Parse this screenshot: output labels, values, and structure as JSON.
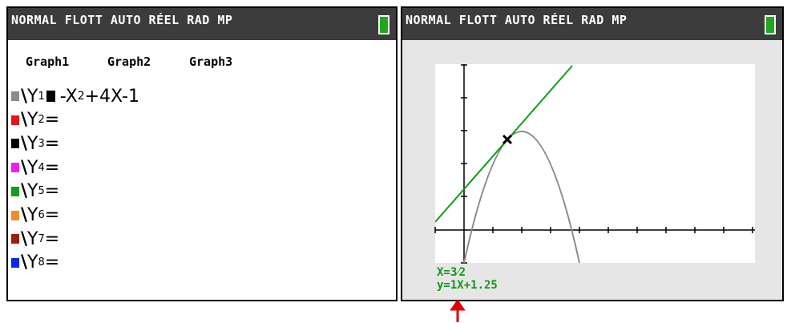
{
  "left_screen": {
    "status_bar": "NORMAL FLOTT AUTO RÉEL RAD MP",
    "tabs": [
      "Graph1",
      "Graph2",
      "Graph3"
    ],
    "y_vars": [
      {
        "name": "Y",
        "sub": "1",
        "color": "#8c8c8c",
        "expr": [
          "-X",
          "2",
          "+4X-1"
        ]
      },
      {
        "name": "Y",
        "sub": "2",
        "color": "#e8141c"
      },
      {
        "name": "Y",
        "sub": "3",
        "color": "#000000"
      },
      {
        "name": "Y",
        "sub": "4",
        "color": "#f01ef0"
      },
      {
        "name": "Y",
        "sub": "5",
        "color": "#10a010"
      },
      {
        "name": "Y",
        "sub": "6",
        "color": "#f58c28"
      },
      {
        "name": "Y",
        "sub": "7",
        "color": "#a01e0a"
      },
      {
        "name": "Y",
        "sub": "8",
        "color": "#0a28f0"
      }
    ],
    "equals": "="
  },
  "right_screen": {
    "status_bar": "NORMAL FLOTT AUTO RÉEL RAD MP",
    "cursor_x": "X=3⁄2",
    "tangent": "y=1X+1.25"
  }
}
